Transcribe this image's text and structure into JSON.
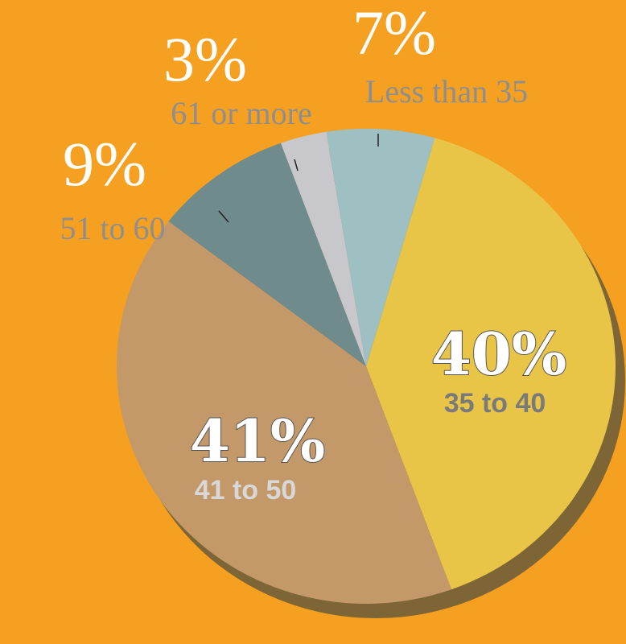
{
  "chart_data": {
    "type": "pie",
    "categories": [
      "35 to 40",
      "41 to 50",
      "51 to 60",
      "61 or more",
      "Less than 35"
    ],
    "values": [
      40,
      41,
      9,
      3,
      7
    ],
    "value_labels": [
      "40%",
      "41%",
      "9%",
      "3%",
      "7%"
    ],
    "colors": [
      "#e8c547",
      "#c4996a",
      "#6f8b8c",
      "#c8c8cc",
      "#9fc0c2"
    ]
  }
}
